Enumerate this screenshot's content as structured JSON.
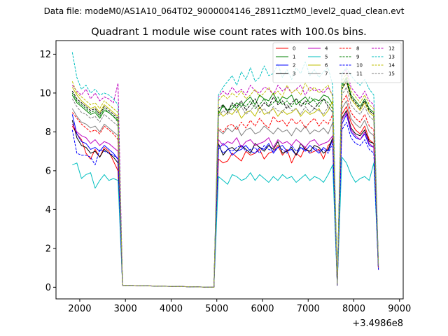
{
  "figure": {
    "suptitle": "Data file: modeM0/AS1A10_064T02_9000004146_28911cztM0_level2_quad_clean.evt",
    "title": "Quadrant 1 module wise count rates with 100.0s bins.",
    "x_offset_label": "+3.4986e8"
  },
  "chart_data": {
    "type": "line",
    "title": "Quadrant 1 module wise count rates with 100.0s bins.",
    "xlabel": "",
    "ylabel": "",
    "x_offset": 349860000,
    "xlim": [
      1480,
      9080
    ],
    "ylim": [
      -0.6,
      12.7
    ],
    "xticks": [
      2000,
      3000,
      4000,
      5000,
      6000,
      7000,
      8000,
      9000
    ],
    "yticks": [
      0,
      2,
      4,
      6,
      8,
      10,
      12
    ],
    "grid": false,
    "legend_position": "top-right",
    "segments": [
      [
        1837,
        2937
      ],
      [
        4937,
        7837
      ],
      [
        7937,
        8737
      ]
    ],
    "series": [
      {
        "name": "0",
        "color": "#ff0000",
        "dash": "solid",
        "values": [
          8.3,
          7.9,
          7.6,
          6.9,
          6.6,
          7.1,
          6.7,
          7.2,
          7.0,
          6.5,
          6.0,
          0.1,
          0,
          6.6,
          6.4,
          6.5,
          6.9,
          6.7,
          6.5,
          7.0,
          6.8,
          6.9,
          7.1,
          6.6,
          6.9,
          7.0,
          7.3,
          6.8,
          7.1,
          6.4,
          6.9,
          6.7,
          7.2,
          6.9,
          7.0,
          7.1,
          6.6,
          7.3,
          7.5,
          0.1,
          8.9,
          9.3,
          8.5,
          8.1,
          7.9,
          8.3,
          7.6,
          7.4,
          0.9
        ]
      },
      {
        "name": "1",
        "color": "#008000",
        "dash": "solid",
        "values": [
          9.9,
          9.5,
          9.3,
          9.1,
          8.9,
          9.0,
          8.7,
          9.1,
          9.0,
          8.8,
          8.6,
          0.1,
          0,
          8.9,
          9.4,
          9.1,
          9.2,
          9.5,
          9.3,
          9.6,
          9.8,
          9.4,
          9.9,
          9.7,
          9.6,
          10.0,
          9.5,
          9.8,
          9.7,
          9.9,
          9.4,
          9.6,
          9.8,
          9.5,
          9.7,
          9.6,
          9.9,
          9.8,
          9.4,
          0.2,
          10.4,
          10.8,
          9.9,
          9.6,
          9.3,
          9.7,
          9.2,
          9.0,
          1.1
        ]
      },
      {
        "name": "2",
        "color": "#0000ff",
        "dash": "solid",
        "values": [
          8.9,
          7.9,
          7.5,
          7.4,
          7.1,
          7.2,
          7.0,
          7.3,
          7.1,
          6.9,
          6.6,
          0.1,
          0,
          7.1,
          7.4,
          7.2,
          6.8,
          7.0,
          7.1,
          7.3,
          7.0,
          6.9,
          7.2,
          7.1,
          7.4,
          6.9,
          7.2,
          7.3,
          7.0,
          7.1,
          6.8,
          7.2,
          7.0,
          7.3,
          7.1,
          6.9,
          7.2,
          7.0,
          7.6,
          0.1,
          8.4,
          8.9,
          8.0,
          7.7,
          7.6,
          7.9,
          7.3,
          7.2,
          1.0
        ]
      },
      {
        "name": "3",
        "color": "#000000",
        "dash": "solid",
        "values": [
          8.6,
          7.7,
          7.3,
          7.2,
          6.9,
          7.0,
          6.7,
          7.1,
          6.9,
          6.7,
          6.4,
          0.1,
          0,
          7.4,
          6.8,
          7.1,
          7.2,
          7.0,
          7.3,
          7.1,
          6.9,
          7.4,
          7.2,
          7.0,
          7.3,
          7.1,
          7.5,
          6.9,
          7.0,
          7.2,
          6.8,
          7.4,
          7.1,
          7.0,
          7.3,
          7.2,
          6.9,
          7.1,
          7.7,
          0.1,
          8.7,
          9.1,
          8.2,
          7.9,
          7.8,
          8.1,
          7.5,
          7.4,
          0.9
        ]
      },
      {
        "name": "4",
        "color": "#bf00bf",
        "dash": "solid",
        "values": [
          8.4,
          8.0,
          7.8,
          7.7,
          7.4,
          7.6,
          7.3,
          7.5,
          7.4,
          7.2,
          7.0,
          0.1,
          0,
          7.6,
          7.3,
          7.5,
          7.4,
          7.7,
          7.2,
          7.5,
          7.6,
          7.3,
          7.4,
          7.5,
          7.7,
          7.2,
          7.6,
          7.4,
          7.5,
          7.3,
          7.6,
          7.4,
          7.2,
          7.5,
          7.6,
          7.3,
          7.4,
          7.5,
          7.8,
          0.1,
          8.6,
          9.0,
          8.1,
          7.8,
          7.6,
          8.0,
          7.4,
          7.2,
          0.9
        ]
      },
      {
        "name": "5",
        "color": "#00bfbf",
        "dash": "solid",
        "values": [
          6.3,
          6.4,
          5.6,
          5.8,
          5.9,
          5.1,
          5.5,
          5.8,
          5.5,
          5.6,
          5.5,
          0.1,
          0,
          5.7,
          5.5,
          5.3,
          5.8,
          5.7,
          5.5,
          5.6,
          5.9,
          5.5,
          5.8,
          5.6,
          5.4,
          5.7,
          5.5,
          5.8,
          5.6,
          5.7,
          5.4,
          5.6,
          5.8,
          5.5,
          5.7,
          5.6,
          5.4,
          5.8,
          6.3,
          0.1,
          6.7,
          6.4,
          5.8,
          5.4,
          5.6,
          5.7,
          5.5,
          6.4,
          1.0
        ]
      },
      {
        "name": "6",
        "color": "#bfbf00",
        "dash": "solid",
        "values": [
          10.3,
          9.9,
          9.6,
          9.4,
          9.2,
          9.3,
          9.0,
          9.4,
          9.2,
          9.0,
          8.8,
          0.1,
          0,
          9.1,
          8.8,
          9.0,
          8.9,
          9.2,
          8.7,
          9.0,
          9.1,
          8.8,
          9.3,
          8.9,
          9.0,
          9.2,
          8.8,
          9.1,
          8.9,
          9.0,
          9.2,
          8.8,
          9.1,
          8.9,
          9.0,
          9.2,
          8.8,
          9.1,
          9.6,
          0.2,
          10.2,
          10.6,
          9.7,
          9.4,
          9.1,
          9.5,
          9.0,
          8.8,
          1.0
        ]
      },
      {
        "name": "7",
        "color": "#808080",
        "dash": "solid",
        "values": [
          9.2,
          8.8,
          8.5,
          8.4,
          8.2,
          8.3,
          8.0,
          8.4,
          8.2,
          8.0,
          7.8,
          0.1,
          0,
          8.1,
          7.9,
          8.2,
          8.0,
          8.3,
          7.8,
          8.1,
          8.2,
          7.9,
          8.0,
          8.3,
          8.1,
          7.9,
          8.2,
          8.0,
          8.1,
          7.8,
          8.2,
          8.0,
          8.3,
          7.9,
          8.1,
          8.0,
          8.2,
          7.9,
          8.5,
          0.1,
          9.2,
          9.6,
          8.7,
          8.4,
          8.2,
          8.6,
          8.0,
          7.8,
          1.0
        ]
      },
      {
        "name": "8",
        "color": "#ff0000",
        "dash": "dashed",
        "values": [
          9.0,
          8.7,
          8.4,
          8.2,
          8.0,
          8.1,
          7.9,
          8.3,
          8.1,
          7.9,
          7.6,
          0.1,
          0,
          8.2,
          8.0,
          8.3,
          8.4,
          8.1,
          8.5,
          8.2,
          8.6,
          8.3,
          8.7,
          8.4,
          8.2,
          8.8,
          8.5,
          8.6,
          8.3,
          8.7,
          8.4,
          8.6,
          8.2,
          8.5,
          8.7,
          8.3,
          8.6,
          8.4,
          8.9,
          0.1,
          9.5,
          9.9,
          9.0,
          8.7,
          8.5,
          8.9,
          8.3,
          8.1,
          1.0
        ]
      },
      {
        "name": "9",
        "color": "#008000",
        "dash": "dashed",
        "values": [
          10.0,
          9.6,
          9.4,
          9.2,
          9.0,
          9.1,
          8.8,
          9.2,
          9.0,
          8.8,
          8.5,
          0.1,
          0,
          9.0,
          9.3,
          9.1,
          9.4,
          9.2,
          9.5,
          9.3,
          9.6,
          9.2,
          9.4,
          9.7,
          9.3,
          9.5,
          9.8,
          9.4,
          9.6,
          9.3,
          9.7,
          9.5,
          9.4,
          9.8,
          9.6,
          9.3,
          9.7,
          9.5,
          9.2,
          0.2,
          10.3,
          10.7,
          9.8,
          9.5,
          9.2,
          9.6,
          9.1,
          8.9,
          1.1
        ]
      },
      {
        "name": "10",
        "color": "#0000ff",
        "dash": "dashed",
        "values": [
          8.1,
          6.9,
          6.8,
          6.8,
          6.7,
          6.3,
          7.1,
          7.0,
          6.9,
          6.8,
          6.6,
          0.1,
          0,
          7.3,
          6.9,
          7.1,
          7.0,
          7.2,
          7.3,
          7.0,
          7.1,
          7.2,
          6.9,
          7.3,
          7.1,
          7.0,
          7.2,
          7.1,
          6.9,
          7.3,
          7.0,
          7.2,
          7.1,
          6.9,
          7.2,
          7.0,
          7.1,
          6.9,
          7.4,
          0.1,
          8.1,
          8.5,
          7.7,
          7.4,
          7.3,
          7.6,
          7.1,
          6.9,
          0.9
        ]
      },
      {
        "name": "11",
        "color": "#000000",
        "dash": "dashed",
        "values": [
          10.1,
          9.7,
          9.5,
          9.3,
          9.1,
          9.2,
          8.9,
          9.3,
          9.1,
          8.9,
          8.7,
          0.1,
          0,
          9.2,
          9.4,
          9.0,
          9.5,
          9.3,
          9.6,
          9.1,
          9.4,
          9.7,
          9.2,
          9.5,
          9.3,
          9.8,
          9.4,
          9.6,
          9.2,
          9.5,
          9.7,
          9.3,
          9.6,
          9.4,
          9.2,
          9.5,
          9.7,
          9.3,
          9.0,
          0.2,
          10.2,
          10.6,
          9.8,
          9.5,
          9.2,
          9.6,
          9.1,
          8.9,
          1.1
        ]
      },
      {
        "name": "12",
        "color": "#bf00bf",
        "dash": "dashed",
        "values": [
          10.4,
          10.1,
          9.9,
          10.2,
          9.7,
          10.0,
          9.6,
          9.8,
          9.7,
          9.5,
          10.5,
          0.1,
          0,
          9.8,
          10.1,
          9.9,
          10.3,
          10.0,
          10.2,
          9.9,
          10.4,
          10.1,
          10.0,
          10.3,
          10.2,
          9.9,
          10.4,
          10.1,
          10.3,
          10.0,
          10.2,
          10.4,
          9.9,
          10.3,
          10.1,
          10.2,
          10.0,
          10.3,
          9.9,
          0.2,
          10.9,
          11.2,
          10.3,
          10.0,
          9.7,
          10.1,
          9.6,
          9.4,
          1.2
        ]
      },
      {
        "name": "13",
        "color": "#00bfbf",
        "dash": "dashed",
        "values": [
          12.1,
          10.8,
          10.2,
          10.4,
          10.0,
          10.2,
          9.9,
          10.0,
          9.9,
          9.7,
          9.4,
          0.1,
          0,
          9.9,
          10.3,
          10.6,
          10.9,
          10.4,
          11.1,
          10.7,
          11.3,
          10.6,
          10.8,
          11.4,
          10.9,
          11.0,
          11.5,
          10.8,
          11.2,
          10.7,
          11.3,
          11.0,
          11.6,
          10.9,
          11.2,
          10.8,
          11.1,
          11.3,
          10.4,
          0.2,
          11.0,
          11.3,
          10.9,
          10.6,
          10.4,
          10.7,
          10.2,
          9.9,
          1.2
        ]
      },
      {
        "name": "14",
        "color": "#bfbf00",
        "dash": "dashed",
        "values": [
          10.6,
          10.0,
          9.8,
          9.6,
          9.4,
          9.5,
          9.2,
          9.6,
          9.4,
          9.2,
          9.0,
          0.1,
          0,
          9.6,
          9.9,
          9.7,
          10.0,
          9.8,
          10.1,
          9.7,
          9.9,
          10.2,
          9.8,
          10.0,
          10.3,
          9.9,
          10.1,
          9.8,
          10.4,
          10.0,
          10.2,
          9.9,
          10.5,
          10.1,
          10.3,
          10.0,
          10.2,
          10.4,
          9.8,
          0.2,
          10.6,
          11.0,
          10.1,
          9.8,
          9.5,
          9.9,
          9.4,
          9.2,
          1.2
        ]
      },
      {
        "name": "15",
        "color": "#808080",
        "dash": "dashed",
        "values": [
          9.7,
          9.3,
          9.0,
          8.9,
          8.7,
          8.8,
          8.5,
          8.9,
          8.7,
          8.5,
          8.3,
          0.1,
          0,
          8.8,
          9.1,
          8.9,
          9.2,
          9.0,
          9.3,
          8.9,
          9.1,
          9.4,
          9.0,
          9.2,
          8.9,
          9.3,
          9.1,
          9.0,
          9.4,
          9.1,
          9.2,
          8.9,
          9.3,
          9.0,
          9.2,
          9.1,
          8.9,
          9.3,
          9.0,
          0.1,
          9.9,
          10.3,
          9.4,
          9.1,
          8.9,
          9.3,
          8.8,
          8.6,
          1.0
        ]
      }
    ]
  }
}
